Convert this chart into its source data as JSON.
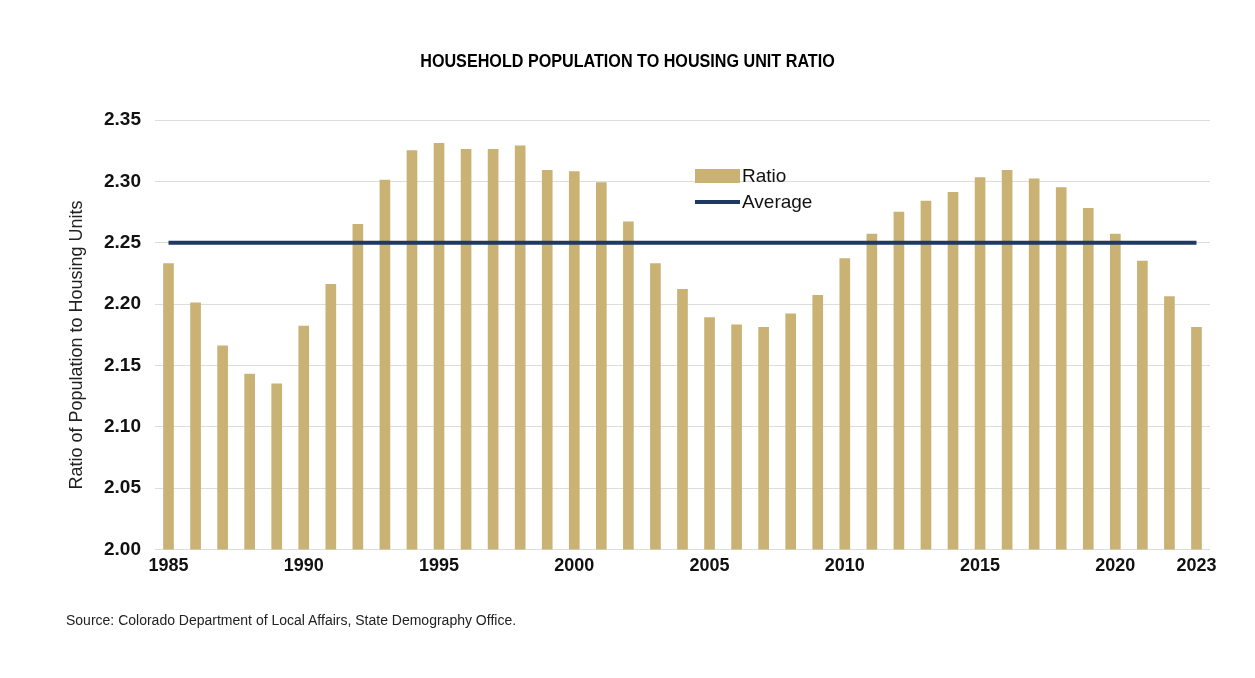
{
  "chart_data": {
    "type": "bar",
    "title": "HOUSEHOLD POPULATION TO HOUSING UNIT RATIO",
    "ylabel": "Ratio of Population to Housing Units",
    "categories": [
      "1985",
      null,
      null,
      null,
      null,
      "1990",
      null,
      null,
      null,
      null,
      "1995",
      null,
      null,
      null,
      null,
      "2000",
      null,
      null,
      null,
      null,
      "2005",
      null,
      null,
      null,
      null,
      "2010",
      null,
      null,
      null,
      null,
      "2015",
      null,
      null,
      null,
      null,
      "2020",
      null,
      null,
      "2023"
    ],
    "series": [
      {
        "name": "Ratio",
        "color": "#c9b273",
        "values": [
          2.233,
          2.201,
          2.166,
          2.143,
          2.135,
          2.182,
          2.216,
          2.265,
          2.301,
          2.325,
          2.331,
          2.326,
          2.326,
          2.329,
          2.309,
          2.308,
          2.299,
          2.267,
          2.233,
          2.212,
          2.189,
          2.183,
          2.181,
          2.192,
          2.207,
          2.237,
          2.257,
          2.275,
          2.284,
          2.291,
          2.303,
          2.309,
          2.302,
          2.295,
          2.278,
          2.257,
          2.235,
          2.206,
          2.181
        ]
      },
      {
        "name": "Average",
        "type": "line",
        "color": "#1f3864",
        "values": [
          2.25,
          2.25,
          2.25,
          2.25,
          2.25,
          2.25,
          2.25,
          2.25,
          2.25,
          2.25,
          2.25,
          2.25,
          2.25,
          2.25,
          2.25,
          2.25,
          2.25,
          2.25,
          2.25,
          2.25,
          2.25,
          2.25,
          2.25,
          2.25,
          2.25,
          2.25,
          2.25,
          2.25,
          2.25,
          2.25,
          2.25,
          2.25,
          2.25,
          2.25,
          2.25,
          2.25,
          2.25,
          2.25,
          2.25
        ]
      }
    ],
    "ylim": [
      2.0,
      2.35
    ],
    "yticks": [
      {
        "value": 2.0,
        "label": "2.00"
      },
      {
        "value": 2.05,
        "label": "2.05"
      },
      {
        "value": 2.1,
        "label": "2.10"
      },
      {
        "value": 2.15,
        "label": "2.15"
      },
      {
        "value": 2.2,
        "label": "2.20"
      },
      {
        "value": 2.25,
        "label": "2.25"
      },
      {
        "value": 2.3,
        "label": "2.30"
      },
      {
        "value": 2.35,
        "label": "2.35"
      }
    ],
    "grid": "y",
    "legend": "top",
    "marker": "none",
    "line_style": "solid",
    "annotations": [
      "Source: Colorado Department of Local Affairs, State Demography Office."
    ]
  }
}
